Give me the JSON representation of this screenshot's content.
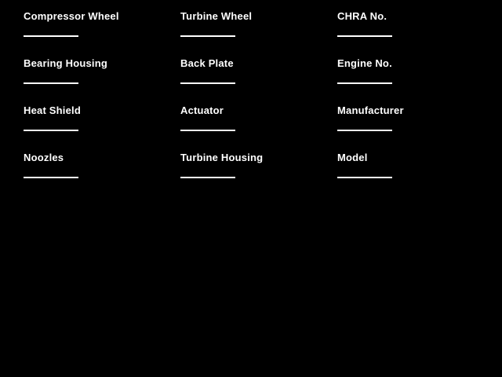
{
  "colors": {
    "background": "#000000",
    "text": "#ffffff",
    "input_line": "#ffffff"
  },
  "form": {
    "rows": [
      {
        "cells": [
          {
            "label": "Compressor Wheel",
            "value": ""
          },
          {
            "label": "Turbine Wheel",
            "value": ""
          },
          {
            "label": "CHRA No.",
            "value": ""
          }
        ]
      },
      {
        "cells": [
          {
            "label": "Bearing Housing",
            "value": ""
          },
          {
            "label": "Back Plate",
            "value": ""
          },
          {
            "label": "Engine No.",
            "value": ""
          }
        ]
      },
      {
        "cells": [
          {
            "label": "Heat Shield",
            "value": ""
          },
          {
            "label": "Actuator",
            "value": ""
          },
          {
            "label": "Manufacturer",
            "value": ""
          }
        ]
      },
      {
        "cells": [
          {
            "label": "Noozles",
            "value": ""
          },
          {
            "label": "Turbine Housing",
            "value": ""
          },
          {
            "label": "Model",
            "value": ""
          }
        ]
      }
    ]
  }
}
